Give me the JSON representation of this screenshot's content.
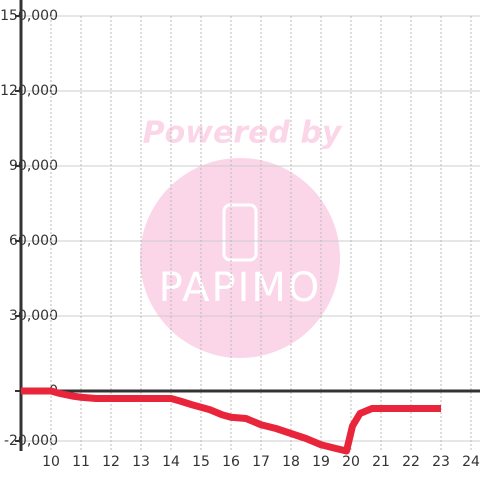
{
  "chart_data": {
    "type": "line",
    "watermark": {
      "title": "Powered by",
      "logo": "PAPIMO"
    },
    "x": [
      9,
      10,
      10.3,
      10.7,
      11,
      11.5,
      12,
      13,
      14,
      14.3,
      14.7,
      15,
      15.3,
      15.7,
      16,
      16.5,
      17,
      17.5,
      18,
      18.5,
      19,
      19.5,
      19.85,
      20.05,
      20.3,
      20.7,
      21,
      22,
      23
    ],
    "series": [
      {
        "color": "#e8253a",
        "values": [
          0,
          0,
          -1000,
          -2000,
          -2500,
          -3000,
          -3000,
          -3000,
          -3000,
          -4000,
          -5500,
          -6500,
          -7500,
          -9500,
          -10500,
          -11000,
          -13500,
          -15000,
          -17000,
          -19000,
          -21500,
          -23000,
          -24000,
          -14000,
          -9000,
          -7000,
          -7000,
          -7000,
          -7000
        ]
      }
    ],
    "xlim": [
      9,
      24.3
    ],
    "xticks": [
      10,
      11,
      12,
      13,
      14,
      15,
      16,
      17,
      18,
      19,
      20,
      21,
      22,
      23,
      24
    ],
    "ylim": [
      -24000,
      150000
    ],
    "yticks": [
      {
        "value": -20000,
        "label": "-20,000"
      },
      {
        "value": 0,
        "label": "0"
      },
      {
        "value": 30000,
        "label": "30,000"
      },
      {
        "value": 60000,
        "label": "60,000"
      },
      {
        "value": 90000,
        "label": "90,000"
      },
      {
        "value": 120000,
        "label": "120,000"
      },
      {
        "value": 150000,
        "label": "150,000"
      }
    ],
    "grid": true
  }
}
